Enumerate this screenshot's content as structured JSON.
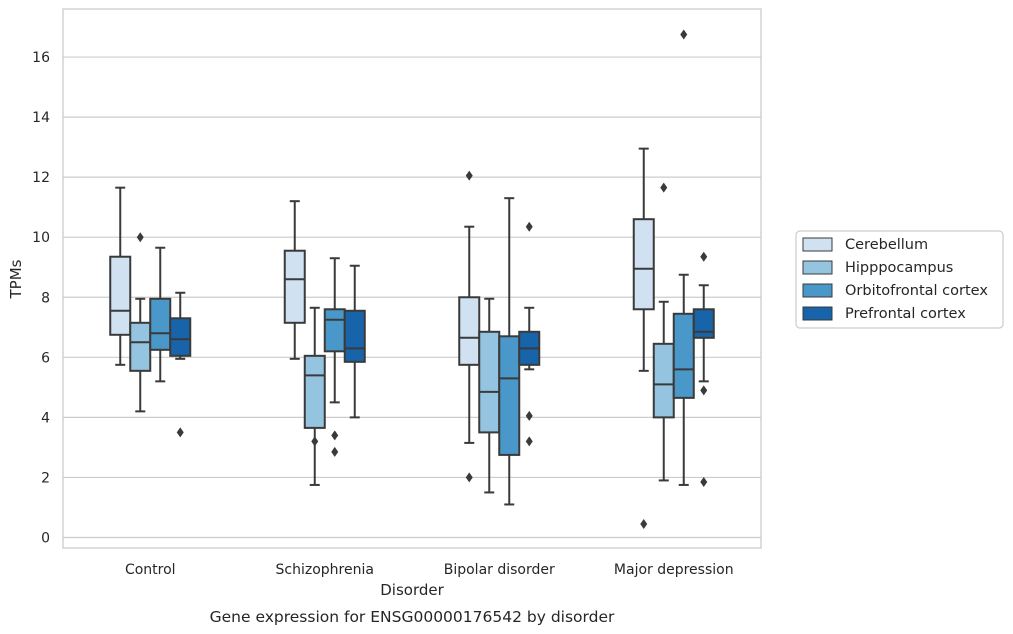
{
  "chart_data": {
    "type": "box",
    "title": "",
    "caption": "Gene expression for ENSG00000176542 by disorder",
    "xlabel": "Disorder",
    "ylabel": "TPMs",
    "ylim": [
      -0.35,
      17.6
    ],
    "yticks": [
      "0",
      "2",
      "4",
      "6",
      "8",
      "10",
      "12",
      "14",
      "16"
    ],
    "grid": "horizontal",
    "legend_position": "right",
    "categories": [
      "Control",
      "Schizophrenia",
      "Bipolar disorder",
      "Major depression"
    ],
    "series": [
      {
        "name": "Cerebellum",
        "color": "#d0e1f2",
        "boxes": [
          {
            "whisker_low": 5.75,
            "q1": 6.75,
            "median": 7.55,
            "q3": 9.35,
            "whisker_high": 11.65,
            "outliers": []
          },
          {
            "whisker_low": 5.95,
            "q1": 7.15,
            "median": 8.6,
            "q3": 9.55,
            "whisker_high": 11.2,
            "outliers": []
          },
          {
            "whisker_low": 3.15,
            "q1": 5.75,
            "median": 6.65,
            "q3": 8.0,
            "whisker_high": 10.35,
            "outliers": [
              12.05,
              2.0
            ]
          },
          {
            "whisker_low": 5.55,
            "q1": 7.6,
            "median": 8.95,
            "q3": 10.6,
            "whisker_high": 12.95,
            "outliers": [
              0.45
            ]
          }
        ]
      },
      {
        "name": "Hipppocampus",
        "color": "#94c4df",
        "boxes": [
          {
            "whisker_low": 4.2,
            "q1": 5.55,
            "median": 6.5,
            "q3": 7.15,
            "whisker_high": 7.95,
            "outliers": [
              10.0
            ]
          },
          {
            "whisker_low": 1.75,
            "q1": 3.65,
            "median": 5.4,
            "q3": 6.05,
            "whisker_high": 7.65,
            "outliers": [
              3.2
            ]
          },
          {
            "whisker_low": 1.5,
            "q1": 3.5,
            "median": 4.85,
            "q3": 6.85,
            "whisker_high": 7.95,
            "outliers": []
          },
          {
            "whisker_low": 1.9,
            "q1": 4.0,
            "median": 5.1,
            "q3": 6.45,
            "whisker_high": 7.85,
            "outliers": [
              11.65
            ]
          }
        ]
      },
      {
        "name": "Orbitofrontal cortex",
        "color": "#4a98c9",
        "boxes": [
          {
            "whisker_low": 5.2,
            "q1": 6.25,
            "median": 6.8,
            "q3": 7.95,
            "whisker_high": 9.65,
            "outliers": []
          },
          {
            "whisker_low": 4.5,
            "q1": 6.2,
            "median": 7.25,
            "q3": 7.6,
            "whisker_high": 9.3,
            "outliers": [
              3.4,
              2.85
            ]
          },
          {
            "whisker_low": 1.1,
            "q1": 2.75,
            "median": 5.3,
            "q3": 6.7,
            "whisker_high": 11.3,
            "outliers": []
          },
          {
            "whisker_low": 1.75,
            "q1": 4.65,
            "median": 5.6,
            "q3": 7.45,
            "whisker_high": 8.75,
            "outliers": [
              16.75
            ]
          }
        ]
      },
      {
        "name": "Prefrontal cortex",
        "color": "#1764ab",
        "boxes": [
          {
            "whisker_low": 5.95,
            "q1": 6.05,
            "median": 6.6,
            "q3": 7.3,
            "whisker_high": 8.15,
            "outliers": [
              3.5
            ]
          },
          {
            "whisker_low": 4.0,
            "q1": 5.85,
            "median": 6.3,
            "q3": 7.55,
            "whisker_high": 9.05,
            "outliers": []
          },
          {
            "whisker_low": 5.6,
            "q1": 5.75,
            "median": 6.3,
            "q3": 6.85,
            "whisker_high": 7.65,
            "outliers": [
              10.35,
              4.05,
              3.2
            ]
          },
          {
            "whisker_low": 5.2,
            "q1": 6.65,
            "median": 6.85,
            "q3": 7.6,
            "whisker_high": 8.4,
            "outliers": [
              9.35,
              4.9,
              1.85
            ]
          }
        ]
      }
    ]
  }
}
